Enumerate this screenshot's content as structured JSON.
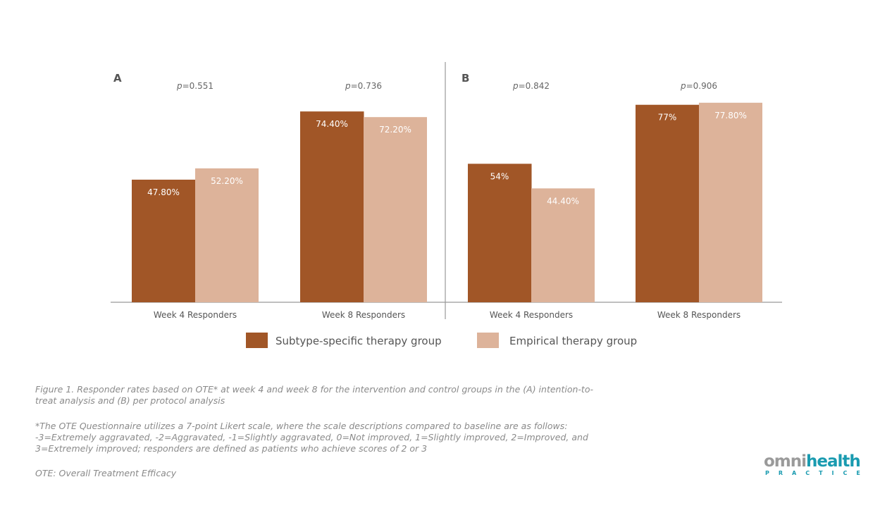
{
  "chart_data": [
    {
      "type": "bar",
      "panel": "A",
      "categories": [
        "Week 4 Responders",
        "Week 8 Responders"
      ],
      "p_values": [
        "=0.551",
        "=0.736"
      ],
      "series": [
        {
          "name": "Subtype-specific therapy group",
          "values": [
            47.8,
            74.4
          ],
          "labels": [
            "47.80%",
            "74.40%"
          ]
        },
        {
          "name": "Empirical therapy group",
          "values": [
            52.2,
            72.2
          ],
          "labels": [
            "52.20%",
            "72.20%"
          ]
        }
      ],
      "ylim": [
        0,
        100
      ]
    },
    {
      "type": "bar",
      "panel": "B",
      "categories": [
        "Week 4 Responders",
        "Week 8 Responders"
      ],
      "p_values": [
        "=0.842",
        "=0.906"
      ],
      "series": [
        {
          "name": "Subtype-specific therapy group",
          "values": [
            54,
            77
          ],
          "labels": [
            "54%",
            "77%"
          ]
        },
        {
          "name": "Empirical therapy group",
          "values": [
            44.4,
            77.8
          ],
          "labels": [
            "44.40%",
            "77.80%"
          ]
        }
      ],
      "ylim": [
        0,
        100
      ]
    }
  ],
  "p_prefix": "p",
  "legend": [
    "Subtype-specific therapy group",
    "Empirical therapy group"
  ],
  "colors": [
    "#A15627",
    "#DDB39A"
  ],
  "caption": {
    "figure": "Figure 1. Responder rates based on OTE* at week 4 and week 8 for the intervention and control groups in the (A) intention-to-treat analysis and (B) per protocol analysis",
    "note": "*The OTE Questionnaire utilizes a 7-point Likert scale, where the scale descriptions compared to baseline are as follows: -3=Extremely aggravated, -2=Aggravated, -1=Slightly aggravated, 0=Not improved, 1=Slightly improved, 2=Improved, and 3=Extremely improved; responders are defined as patients who achieve scores of 2 or 3",
    "abbrev": "OTE: Overall Treatment Efficacy"
  },
  "logo": {
    "omni": "omni",
    "health": "health",
    "sub": "PRACTICE"
  }
}
